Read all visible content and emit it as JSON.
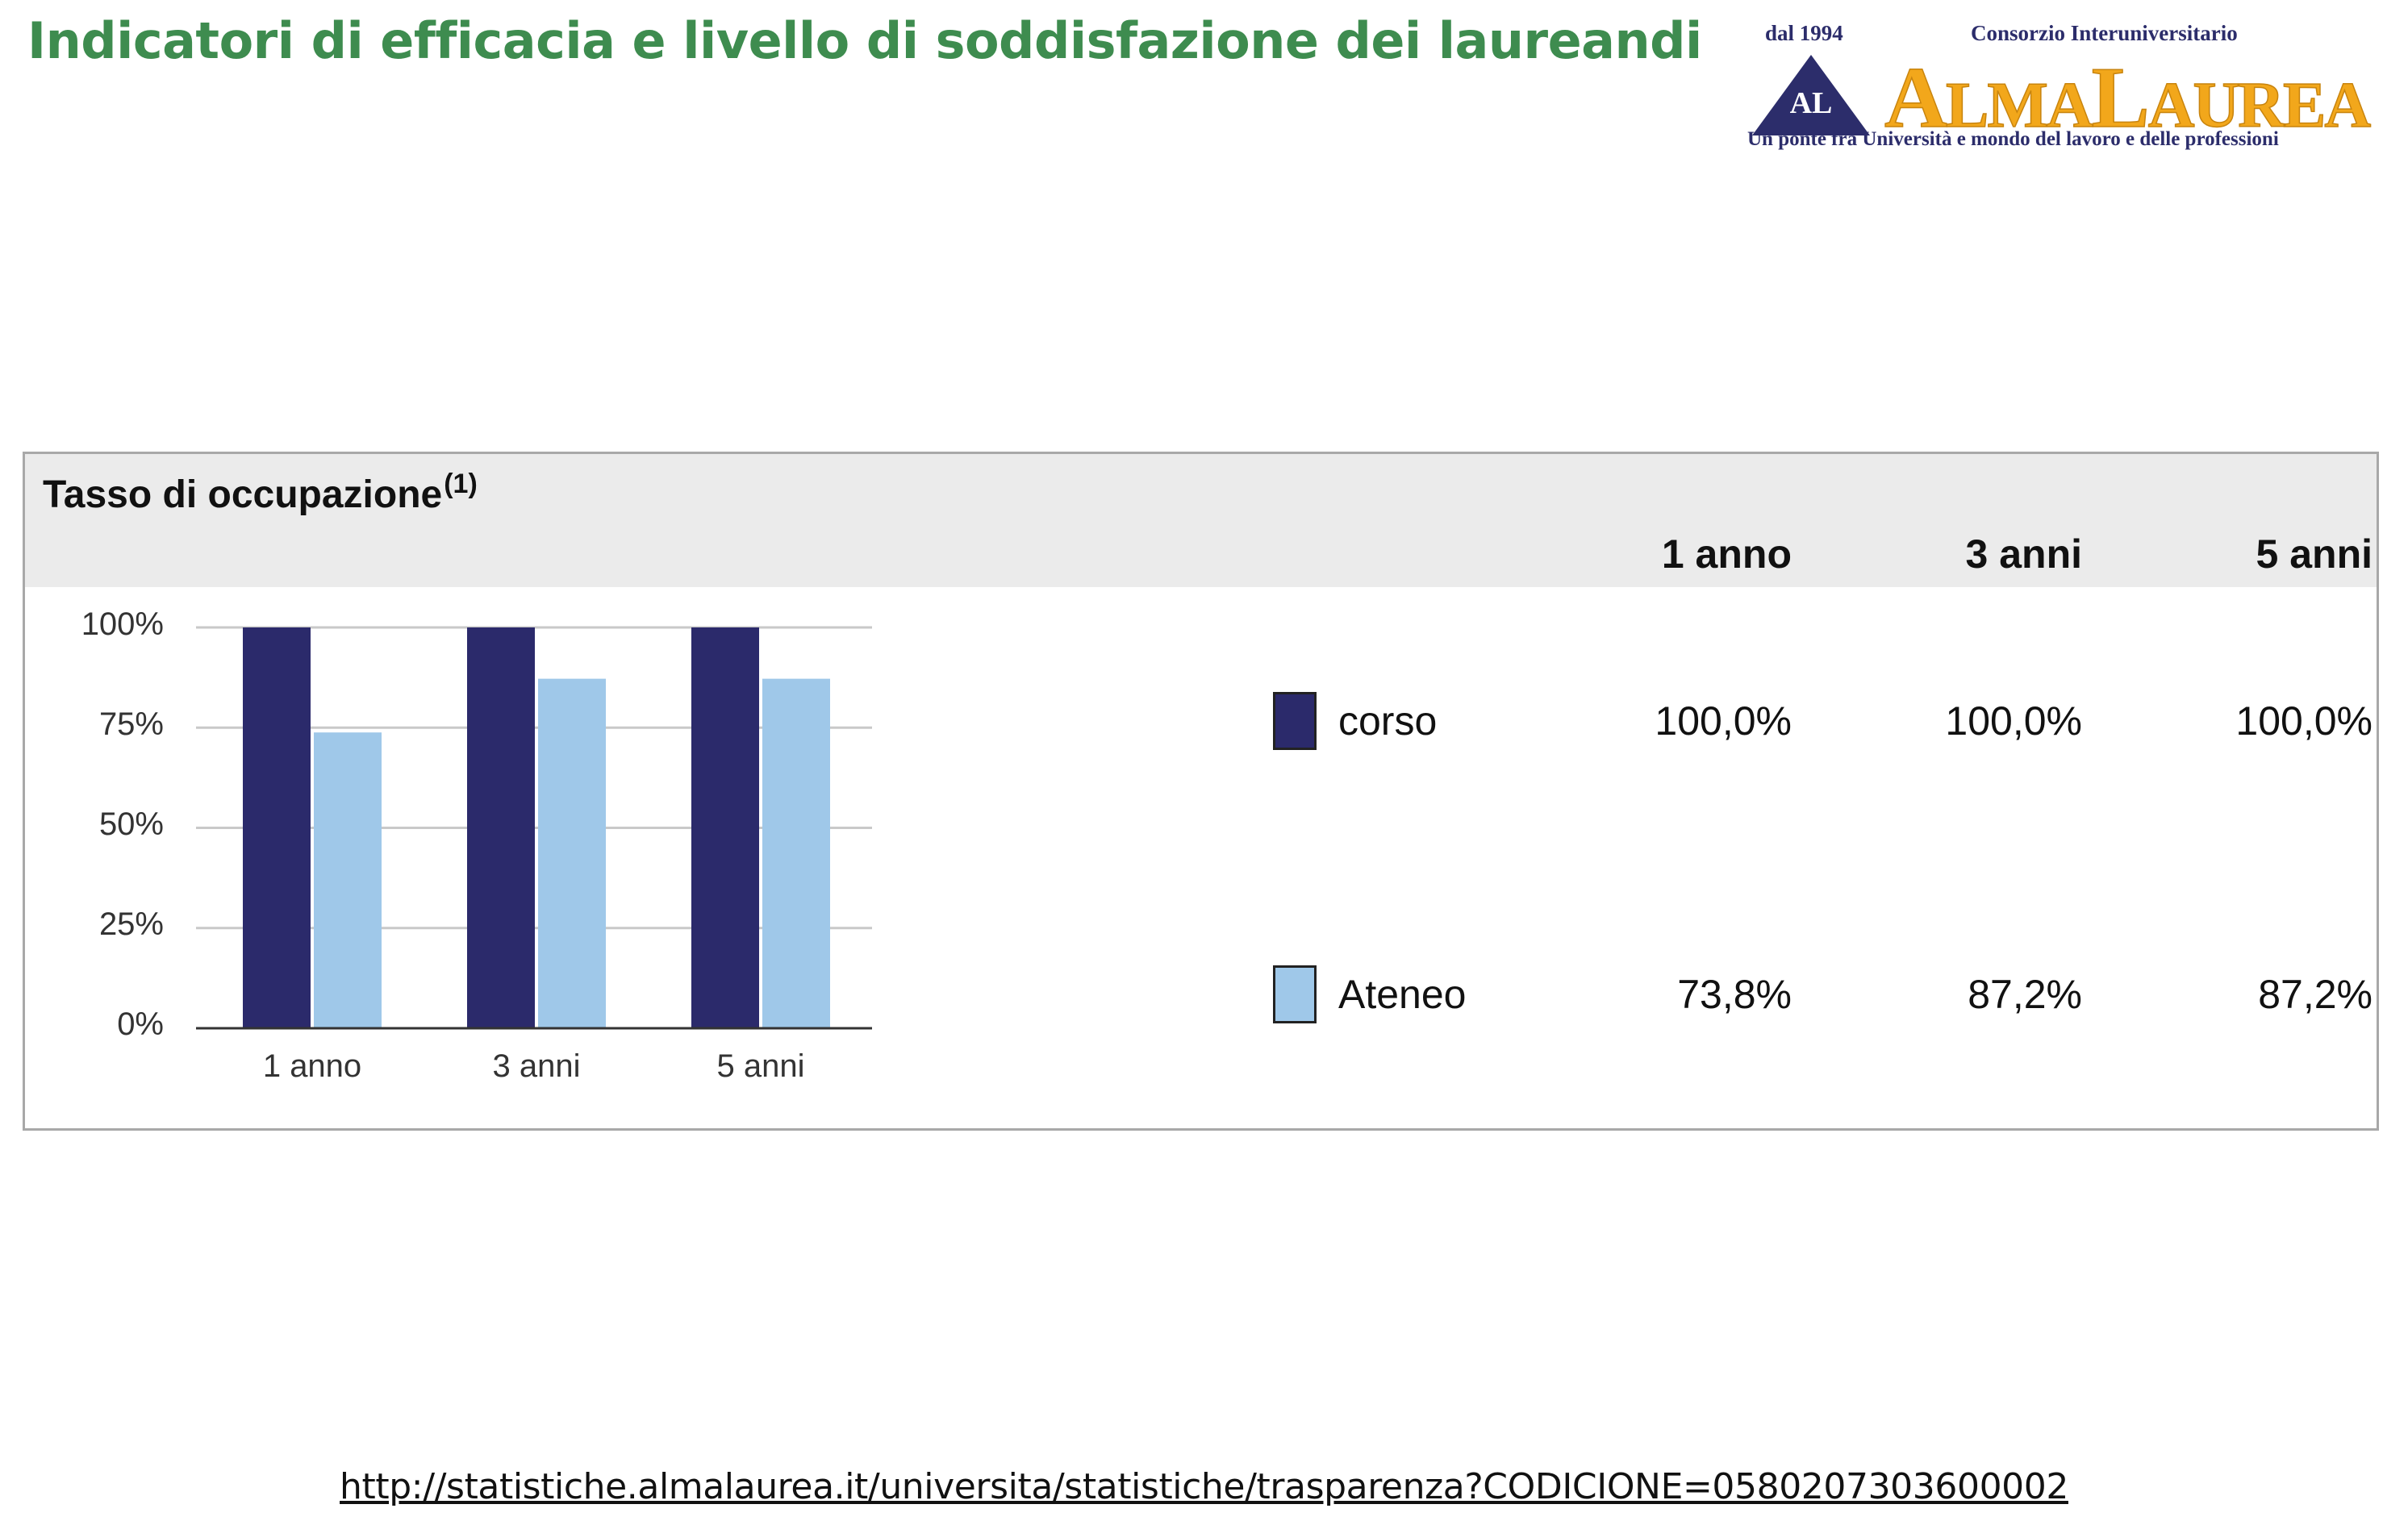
{
  "page": {
    "title": "Indicatori di efficacia e livello di soddisfazione dei laureandi",
    "source_link": "http://statistiche.almalaurea.it/universita/statistiche/trasparenza?CODICIONE=0580207303600002"
  },
  "logo": {
    "since": "dal 1994",
    "consortium": "Consorzio Interuniversitario",
    "monogram": "AL",
    "name": "AlmaLaurea",
    "tagline": "Un ponte fra Università e mondo del lavoro e delle professioni"
  },
  "panel": {
    "title": "Tasso di occupazione",
    "title_note": "(1)",
    "columns": [
      "1 anno",
      "3 anni",
      "5 anni"
    ],
    "rows": [
      {
        "label": "corso",
        "values": [
          "100,0%",
          "100,0%",
          "100,0%"
        ]
      },
      {
        "label": "Ateneo",
        "values": [
          "73,8%",
          "87,2%",
          "87,2%"
        ]
      }
    ]
  },
  "colors": {
    "corso": "#2b2a6b",
    "ateneo": "#9fc8e9",
    "title_green": "#3e8c4f",
    "grid": "#c9c9c9"
  },
  "chart_data": {
    "type": "bar",
    "categories": [
      "1 anno",
      "3 anni",
      "5 anni"
    ],
    "series": [
      {
        "name": "corso",
        "values": [
          100.0,
          100.0,
          100.0
        ]
      },
      {
        "name": "Ateneo",
        "values": [
          73.8,
          87.2,
          87.2
        ]
      }
    ],
    "yticks": [
      "0%",
      "25%",
      "50%",
      "75%",
      "100%"
    ],
    "ylim": [
      0,
      100
    ],
    "grid": true,
    "legend": "right"
  }
}
